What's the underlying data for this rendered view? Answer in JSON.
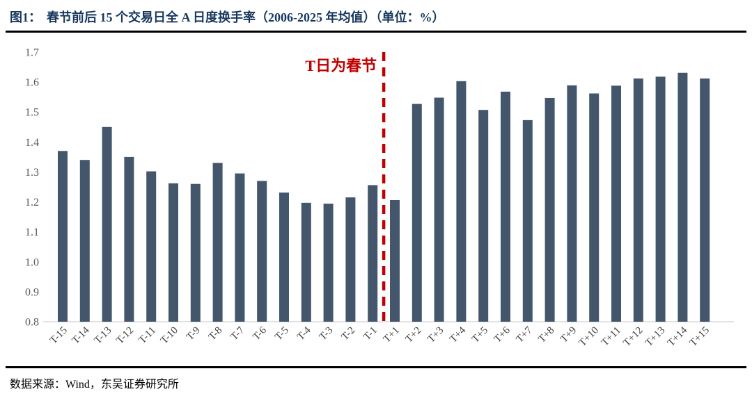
{
  "header": {
    "figure_label": "图1：",
    "title": "春节前后 15 个交易日全 A 日度换手率（2006-2025 年均值）（单位：%）"
  },
  "footer": {
    "source": "数据来源：Wind，东吴证券研究所"
  },
  "colors": {
    "bar": "#44566C",
    "accent_red": "#C00000",
    "title": "#17375E",
    "y_tick": "#595959",
    "x_tick": "#404040",
    "axis_line": "#D9D9D9"
  },
  "chart_data": {
    "type": "bar",
    "title": "春节前后 15 个交易日全 A 日度换手率（2006-2025 年均值）",
    "unit": "%",
    "categories": [
      "T-15",
      "T-14",
      "T-13",
      "T-12",
      "T-11",
      "T-10",
      "T-9",
      "T-8",
      "T-7",
      "T-6",
      "T-5",
      "T-4",
      "T-3",
      "T-2",
      "T-1",
      "T+1",
      "T+2",
      "T+3",
      "T+4",
      "T+5",
      "T+6",
      "T+7",
      "T+8",
      "T+9",
      "T+10",
      "T+11",
      "T+12",
      "T+13",
      "T+14",
      "T+15"
    ],
    "values": [
      1.37,
      1.34,
      1.45,
      1.35,
      1.302,
      1.262,
      1.26,
      1.33,
      1.295,
      1.27,
      1.231,
      1.197,
      1.194,
      1.215,
      1.256,
      1.206,
      1.527,
      1.548,
      1.603,
      1.507,
      1.568,
      1.473,
      1.547,
      1.589,
      1.562,
      1.588,
      1.612,
      1.618,
      1.631,
      1.612
    ],
    "ylim": [
      0.8,
      1.7
    ],
    "yticks": [
      0.8,
      0.9,
      1.0,
      1.1,
      1.2,
      1.3,
      1.4,
      1.5,
      1.6,
      1.7
    ],
    "grid": false,
    "legend": "none",
    "annotation": {
      "text": "T日为春节",
      "divider_between": [
        "T-1",
        "T+1"
      ]
    }
  }
}
